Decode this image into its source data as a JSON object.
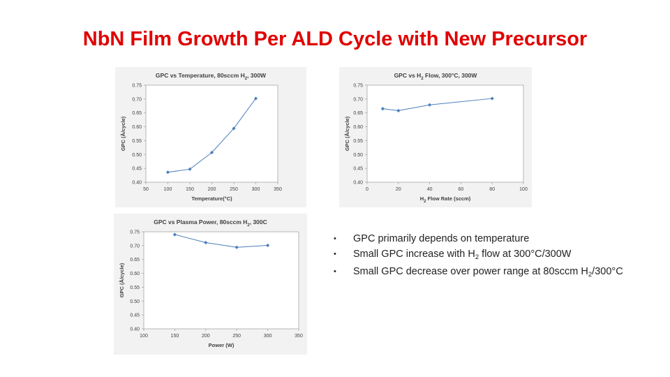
{
  "title": "NbN Film Growth Per ALD Cycle with New Precursor",
  "bullets": [
    {
      "parts": [
        "GPC primarily depends on temperature"
      ]
    },
    {
      "parts": [
        "Small GPC increase with H",
        "2",
        " flow at 300°C/300W"
      ]
    },
    {
      "parts": [
        "Small GPC decrease over power range at 80sccm H",
        "2",
        "/300°C"
      ]
    }
  ],
  "bullet_marker": "•",
  "line_color": "#4a7ebb",
  "chart_data": [
    {
      "type": "line",
      "title_parts": [
        "GPC vs Temperature, 80sccm H",
        "2",
        ", 300W"
      ],
      "xlabel": "Temperature(°C)",
      "ylabel": "GPC (Å/cycle)",
      "xlim": [
        50,
        350
      ],
      "ylim": [
        0.4,
        0.75
      ],
      "xticks": [
        "50",
        "100",
        "150",
        "200",
        "250",
        "300",
        "350"
      ],
      "yticks": [
        "0.40",
        "0.45",
        "0.50",
        "0.55",
        "0.60",
        "0.65",
        "0.70",
        "0.75"
      ],
      "grid": "none",
      "x": [
        100,
        150,
        200,
        250,
        300
      ],
      "y": [
        0.436,
        0.447,
        0.507,
        0.594,
        0.702
      ]
    },
    {
      "type": "line",
      "title_parts": [
        "GPC vs H",
        "2",
        " Flow, 300°C, 300W"
      ],
      "xlabel_parts": [
        "H",
        "2",
        " Flow Rate (sccm)"
      ],
      "ylabel": "GPC (Å/cycle)",
      "xlim": [
        0,
        100
      ],
      "ylim": [
        0.4,
        0.75
      ],
      "xticks": [
        "0",
        "20",
        "40",
        "60",
        "80",
        "100"
      ],
      "yticks": [
        "0.40",
        "0.45",
        "0.50",
        "0.55",
        "0.60",
        "0.65",
        "0.70",
        "0.75"
      ],
      "grid": "none",
      "x": [
        10,
        20,
        40,
        80
      ],
      "y": [
        0.665,
        0.658,
        0.679,
        0.702
      ]
    },
    {
      "type": "line",
      "title_parts": [
        "GPC vs Plasma Power, 80sccm H",
        "2",
        ", 300C"
      ],
      "xlabel": "Power (W)",
      "ylabel": "GPC (Å/cycle)",
      "xlim": [
        100,
        350
      ],
      "ylim": [
        0.4,
        0.75
      ],
      "xticks": [
        "100",
        "150",
        "200",
        "250",
        "300",
        "350"
      ],
      "yticks": [
        "0.40",
        "0.45",
        "0.50",
        "0.55",
        "0.60",
        "0.65",
        "0.70",
        "0.75"
      ],
      "grid": "none",
      "x": [
        150,
        200,
        250,
        300
      ],
      "y": [
        0.74,
        0.711,
        0.694,
        0.701
      ]
    }
  ]
}
